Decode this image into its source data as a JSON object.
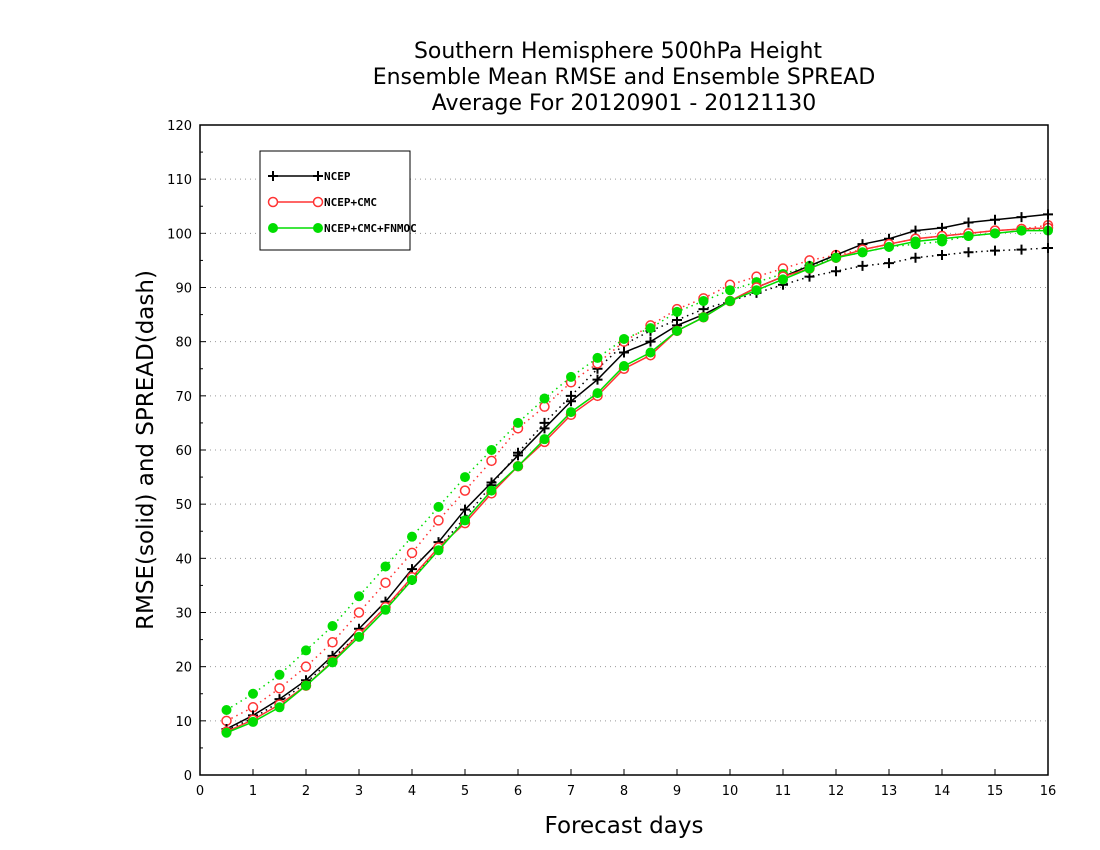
{
  "chart_data": {
    "type": "line",
    "title_lines": [
      "Southern Hemisphere 500hPa Height",
      "Ensemble Mean RMSE and Ensemble SPREAD",
      "Average For 20120901 - 20121130"
    ],
    "xlabel": "Forecast days",
    "ylabel": "RMSE(solid) and SPREAD(dash)",
    "xlim": [
      0,
      16
    ],
    "ylim": [
      0,
      120
    ],
    "xticks": [
      "0",
      "1",
      "2",
      "3",
      "4",
      "5",
      "6",
      "7",
      "8",
      "9",
      "10",
      "11",
      "12",
      "13",
      "14",
      "15",
      "16"
    ],
    "yticks": [
      "0",
      "10",
      "20",
      "30",
      "40",
      "50",
      "60",
      "70",
      "80",
      "90",
      "100",
      "110",
      "120"
    ],
    "grid": true,
    "legend_position": "top-left",
    "legend_entries": [
      "NCEP",
      "NCEP+CMC",
      "NCEP+CMC+FNMOC"
    ],
    "x": [
      0.5,
      1,
      1.5,
      2,
      2.5,
      3,
      3.5,
      4,
      4.5,
      5,
      5.5,
      6,
      6.5,
      7,
      7.5,
      8,
      8.5,
      9,
      9.5,
      10,
      10.5,
      11,
      11.5,
      12,
      12.5,
      13,
      13.5,
      14,
      14.5,
      15,
      15.5,
      16
    ],
    "series": [
      {
        "name": "NCEP",
        "metric": "RMSE",
        "line": "solid",
        "marker": "plus",
        "color": "#000000",
        "values": [
          8.5,
          11,
          14,
          17.5,
          22,
          27,
          32,
          38,
          43,
          49,
          54,
          59,
          64,
          69,
          73,
          78,
          80,
          83,
          85,
          87.5,
          90,
          92,
          94,
          96,
          98,
          99,
          100.5,
          101,
          102,
          102.5,
          103,
          103.5
        ]
      },
      {
        "name": "NCEP",
        "metric": "SPREAD",
        "line": "dash",
        "marker": "plus",
        "color": "#000000",
        "values": [
          8.3,
          10.5,
          13.5,
          17,
          21.5,
          26,
          31,
          36,
          42,
          47.5,
          53.5,
          59.5,
          65,
          70,
          75,
          79.5,
          82,
          84,
          86,
          87.5,
          89,
          90.5,
          92,
          93,
          94,
          94.5,
          95.5,
          96,
          96.5,
          96.8,
          97,
          97.3
        ]
      },
      {
        "name": "NCEP+CMC",
        "metric": "RMSE",
        "line": "solid",
        "marker": "open-circle",
        "color": "#ff3333",
        "values": [
          8,
          10.2,
          13,
          16.5,
          21,
          26,
          31,
          36.5,
          42,
          46.5,
          52,
          57,
          61.5,
          66.5,
          70,
          75,
          77.5,
          82,
          84.5,
          87.5,
          90,
          92,
          93.5,
          95.5,
          97,
          98,
          99,
          99.5,
          100,
          100.5,
          100.8,
          101
        ]
      },
      {
        "name": "NCEP+CMC",
        "metric": "SPREAD",
        "line": "dash",
        "marker": "open-circle",
        "color": "#ff3333",
        "values": [
          10,
          12.5,
          16,
          20,
          24.5,
          30,
          35.5,
          41,
          47,
          52.5,
          58,
          64,
          68,
          72.5,
          76,
          80,
          83,
          86,
          88,
          90.5,
          92,
          93.5,
          95,
          96,
          97,
          98,
          99,
          99.5,
          100,
          100.5,
          100.8,
          101.5
        ]
      },
      {
        "name": "NCEP+CMC+FNMOC",
        "metric": "RMSE",
        "line": "solid",
        "marker": "filled-circle",
        "color": "#00dd00",
        "values": [
          7.8,
          9.8,
          12.5,
          16.5,
          20.8,
          25.5,
          30.5,
          36,
          41.5,
          47,
          52.5,
          57,
          62,
          67,
          70.5,
          75.5,
          78,
          82,
          84.5,
          87.5,
          89.5,
          91.5,
          93.5,
          95.5,
          96.5,
          97.5,
          98.5,
          99,
          99.5,
          100,
          100.5,
          100.5
        ]
      },
      {
        "name": "NCEP+CMC+FNMOC",
        "metric": "SPREAD",
        "line": "dash",
        "marker": "filled-circle",
        "color": "#00dd00",
        "values": [
          12,
          15,
          18.5,
          23,
          27.5,
          33,
          38.5,
          44,
          49.5,
          55,
          60,
          65,
          69.5,
          73.5,
          77,
          80.5,
          82.5,
          85.5,
          87.5,
          89.5,
          91,
          92.5,
          94,
          95.5,
          96.5,
          97.5,
          98,
          98.5,
          99.5,
          100,
          100.5,
          100.8
        ]
      }
    ]
  }
}
